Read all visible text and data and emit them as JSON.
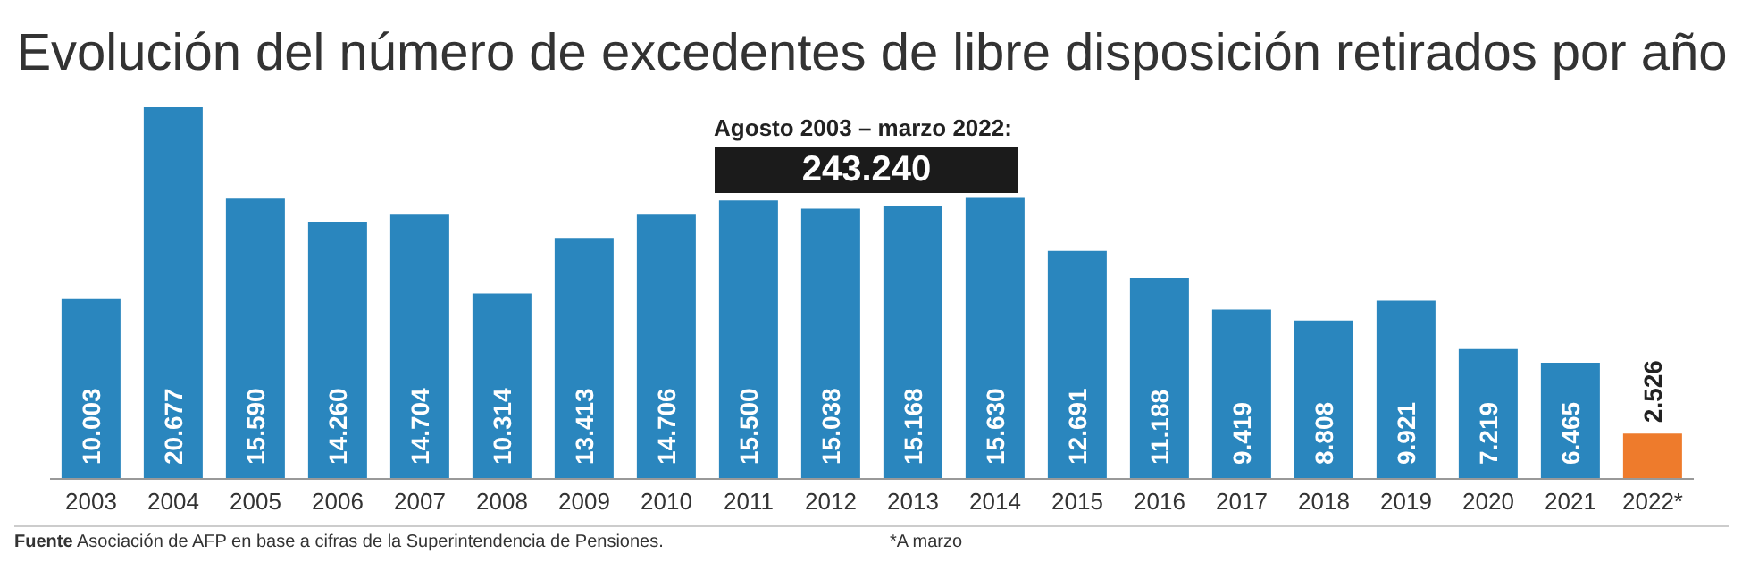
{
  "chart_data": {
    "type": "bar",
    "title": "Evolución del número de excedentes de libre disposición retirados por año",
    "categories": [
      "2003",
      "2004",
      "2005",
      "2006",
      "2007",
      "2008",
      "2009",
      "2010",
      "2011",
      "2012",
      "2013",
      "2014",
      "2015",
      "2016",
      "2017",
      "2018",
      "2019",
      "2020",
      "2021",
      "2022*"
    ],
    "values": [
      10003,
      20677,
      15590,
      14260,
      14704,
      10314,
      13413,
      14706,
      15500,
      15038,
      15168,
      15630,
      12691,
      11188,
      9419,
      8808,
      9921,
      7219,
      6465,
      2526
    ],
    "value_labels": [
      "10.003",
      "20.677",
      "15.590",
      "14.260",
      "14.704",
      "10.314",
      "13.413",
      "14.706",
      "15.500",
      "15.038",
      "15.168",
      "15.630",
      "12.691",
      "11.188",
      "9.419",
      "8.808",
      "9.921",
      "7.219",
      "6.465",
      "2.526"
    ],
    "colors": [
      "#2a86be",
      "#2a86be",
      "#2a86be",
      "#2a86be",
      "#2a86be",
      "#2a86be",
      "#2a86be",
      "#2a86be",
      "#2a86be",
      "#2a86be",
      "#2a86be",
      "#2a86be",
      "#2a86be",
      "#2a86be",
      "#2a86be",
      "#2a86be",
      "#2a86be",
      "#2a86be",
      "#2a86be",
      "#ee7b2c"
    ],
    "annotations": [
      "Agosto 2003 – marzo 2022:",
      "243.240",
      "Fuente",
      "Asociación de AFP en base a cifras de la Superintendencia de Pensiones.",
      "*A marzo"
    ],
    "legend": false,
    "grid": false
  }
}
